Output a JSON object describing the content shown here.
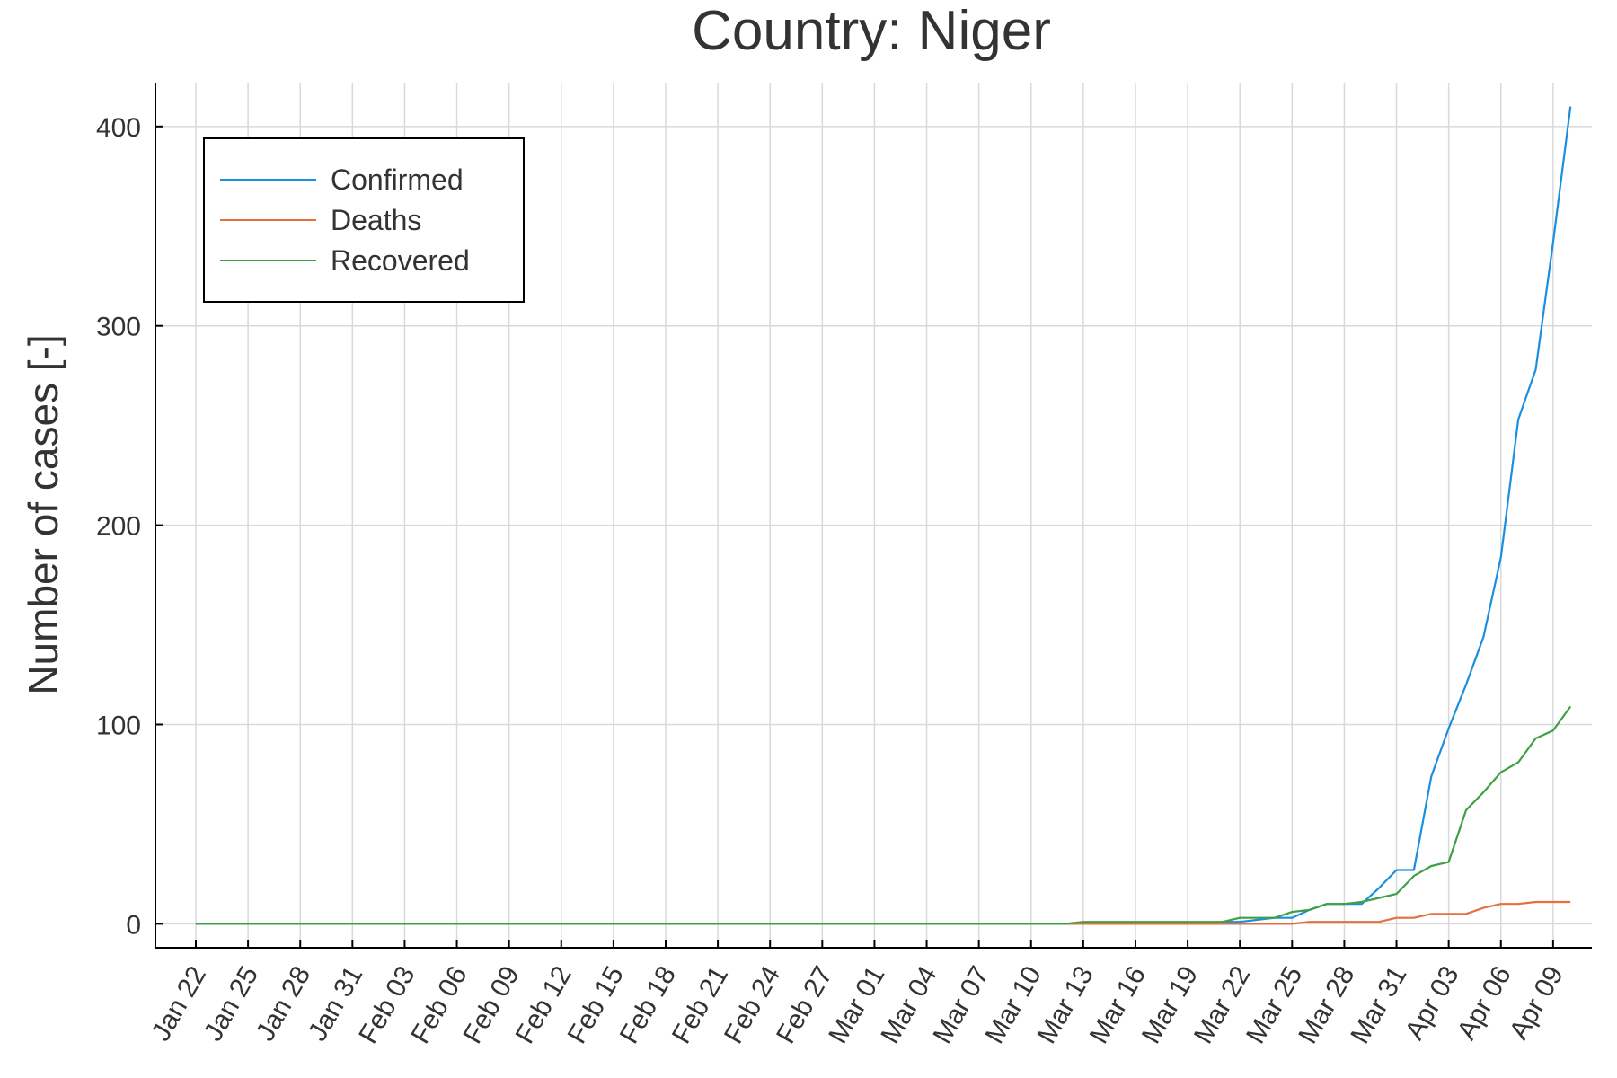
{
  "chart_data": {
    "type": "line",
    "title": "Country: Niger",
    "xlabel": "",
    "ylabel": "Number of cases [-]",
    "ylim": [
      -12,
      422
    ],
    "y_ticks": [
      0,
      100,
      200,
      300,
      400
    ],
    "grid": true,
    "legend_position": "top-left",
    "x_ticks": [
      "Jan 22",
      "Jan 25",
      "Jan 28",
      "Jan 31",
      "Feb 03",
      "Feb 06",
      "Feb 09",
      "Feb 12",
      "Feb 15",
      "Feb 18",
      "Feb 21",
      "Feb 24",
      "Feb 27",
      "Mar 01",
      "Mar 04",
      "Mar 07",
      "Mar 10",
      "Mar 13",
      "Mar 16",
      "Mar 19",
      "Mar 22",
      "Mar 25",
      "Mar 28",
      "Mar 31",
      "Apr 03",
      "Apr 06",
      "Apr 09"
    ],
    "x_start": "2020-01-22",
    "series": [
      {
        "name": "Confirmed",
        "color": "#1a8fe0",
        "values": [
          0,
          0,
          0,
          0,
          0,
          0,
          0,
          0,
          0,
          0,
          0,
          0,
          0,
          0,
          0,
          0,
          0,
          0,
          0,
          0,
          0,
          0,
          0,
          0,
          0,
          0,
          0,
          0,
          0,
          0,
          0,
          0,
          0,
          0,
          0,
          0,
          0,
          0,
          0,
          0,
          0,
          0,
          0,
          0,
          0,
          0,
          0,
          0,
          0,
          0,
          0,
          0,
          0,
          0,
          0,
          0,
          0,
          0,
          0,
          1,
          1,
          2,
          3,
          3,
          7,
          10,
          10,
          10,
          18,
          27,
          27,
          74,
          98,
          120,
          144,
          184,
          253,
          278,
          342,
          410
        ]
      },
      {
        "name": "Deaths",
        "color": "#e3703d",
        "values": [
          0,
          0,
          0,
          0,
          0,
          0,
          0,
          0,
          0,
          0,
          0,
          0,
          0,
          0,
          0,
          0,
          0,
          0,
          0,
          0,
          0,
          0,
          0,
          0,
          0,
          0,
          0,
          0,
          0,
          0,
          0,
          0,
          0,
          0,
          0,
          0,
          0,
          0,
          0,
          0,
          0,
          0,
          0,
          0,
          0,
          0,
          0,
          0,
          0,
          0,
          0,
          0,
          0,
          0,
          0,
          0,
          0,
          0,
          0,
          0,
          0,
          0,
          0,
          0,
          1,
          1,
          1,
          1,
          1,
          3,
          3,
          5,
          5,
          5,
          8,
          10,
          10,
          11,
          11,
          11
        ]
      },
      {
        "name": "Recovered",
        "color": "#3ea044",
        "values": [
          0,
          0,
          0,
          0,
          0,
          0,
          0,
          0,
          0,
          0,
          0,
          0,
          0,
          0,
          0,
          0,
          0,
          0,
          0,
          0,
          0,
          0,
          0,
          0,
          0,
          0,
          0,
          0,
          0,
          0,
          0,
          0,
          0,
          0,
          0,
          0,
          0,
          0,
          0,
          0,
          0,
          0,
          0,
          0,
          0,
          0,
          0,
          0,
          0,
          0,
          0,
          1,
          1,
          1,
          1,
          1,
          1,
          1,
          1,
          1,
          3,
          3,
          3,
          6,
          7,
          10,
          10,
          11,
          13,
          15,
          24,
          29,
          31,
          57,
          66,
          76,
          81,
          93,
          97,
          109
        ]
      }
    ]
  }
}
